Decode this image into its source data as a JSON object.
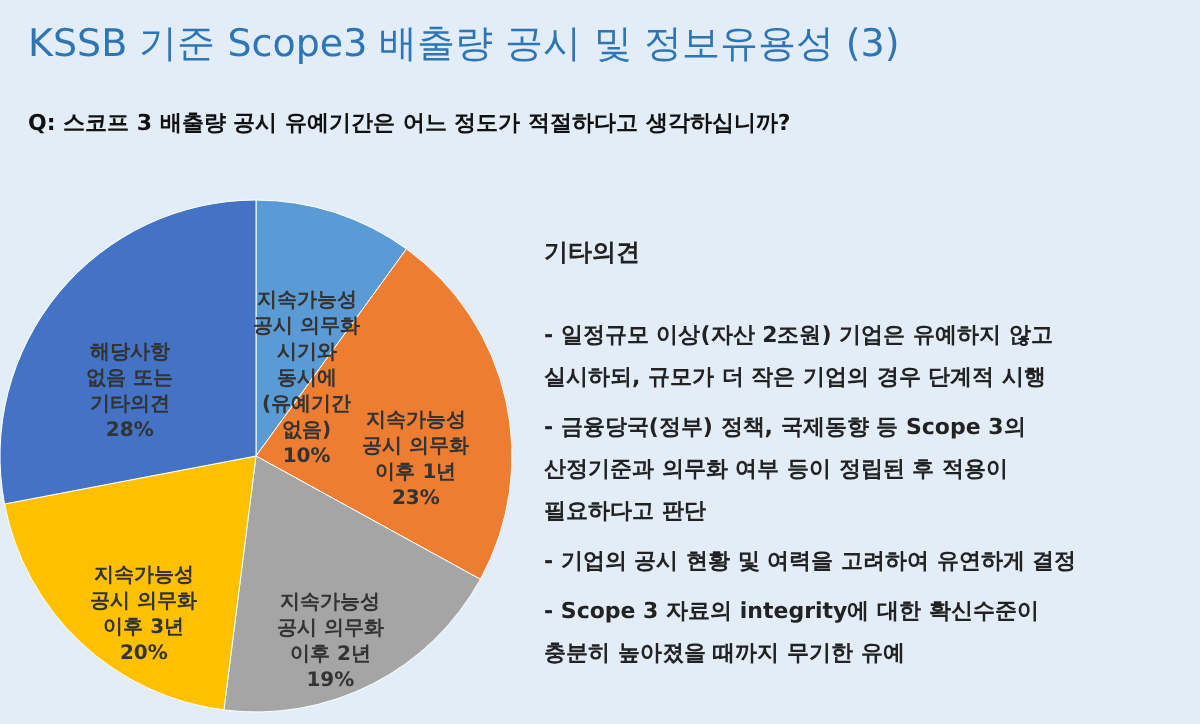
{
  "chart_data": {
    "type": "pie",
    "title": "KSSB 기준 Scope3 배출량 공시 및 정보유용성 (3)",
    "subtitle": "Q: 스코프 3 배출량 공시 유예기간은 어느 정도가 적절하다고 생각하십니까?",
    "categories": [
      "지속가능성 공시 의무화 시기와 동시에 (유예기간 없음)",
      "지속가능성 공시 의무화 이후 1년",
      "지속가능성 공시 의무화 이후 2년",
      "지속가능성 공시 의무화 이후 3년",
      "해당사항 없음 또는 기타의견"
    ],
    "values": [
      10,
      23,
      19,
      20,
      28
    ],
    "colors": [
      "#5b9bd5",
      "#ed7d31",
      "#a5a5a5",
      "#ffc000",
      "#4472c4"
    ],
    "value_labels": [
      "10%",
      "23%",
      "19%",
      "20%",
      "28%"
    ],
    "annotations": [
      "기타의견",
      "- 일정규모 이상(자산 2조원) 기업은 유예하지 않고 실시하되, 규모가 더 작은 기업의 경우 단계적 시행",
      "- 금융당국(정부) 정책, 국제동향 등 Scope 3의 산정기준과 의무화 여부 등이 정립된 후 적용이 필요하다고 판단",
      "- 기업의 공시 현황 및 여력을 고려하여 유연하게 결정",
      "- Scope 3 자료의 integrity에 대한 확신수준이 충분히 높아졌을 때까지 무기한 유예"
    ]
  }
}
